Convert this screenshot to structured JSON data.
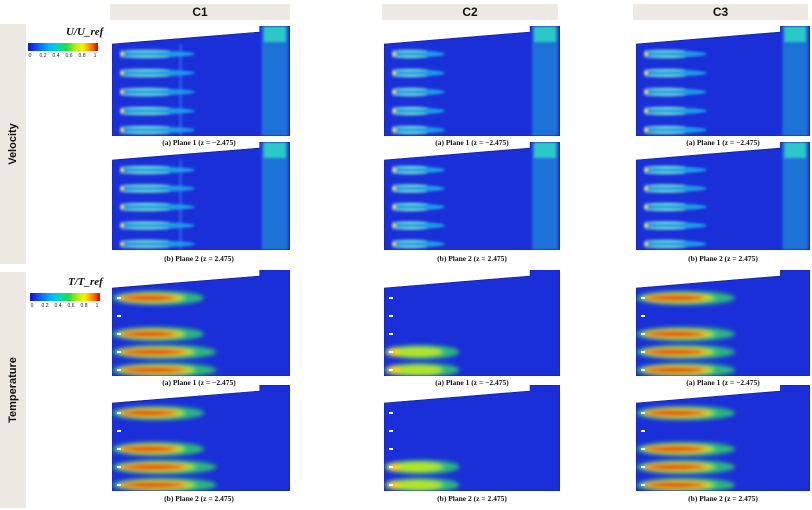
{
  "columns": [
    "C1",
    "C2",
    "C3"
  ],
  "rows": [
    "Velocity",
    "Temperature"
  ],
  "legends": {
    "velocity": {
      "title": "U/U_ref",
      "ticks": [
        "0",
        "0.2",
        "0.4",
        "0.6",
        "0.8",
        "1"
      ]
    },
    "temperature": {
      "title": "T/T_ref",
      "ticks": [
        "0",
        "0.2",
        "0.4",
        "0.6",
        "0.8",
        "1"
      ]
    }
  },
  "captions": {
    "plane1": "(a) Plane 1 (z = −2.475)",
    "plane2": "(b) Plane 2 (z = 2.475)"
  },
  "colors": {
    "header_bg": "#ebe9e1",
    "field_bg": "#1a2fd8",
    "hot": "#e01010"
  }
}
